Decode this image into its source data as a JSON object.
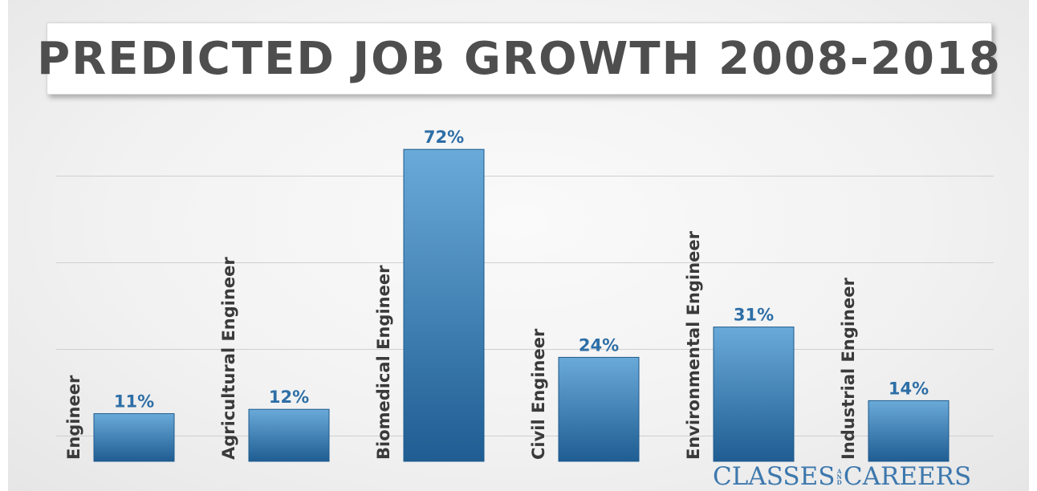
{
  "chart_data": {
    "type": "bar",
    "title": "PREDICTED JOB GROWTH 2008-2018",
    "categories": [
      "Engineer",
      "Agricultural Engineer",
      "Biomedical Engineer",
      "Civil Engineer",
      "Environmental Engineer",
      "Industrial Engineer"
    ],
    "values": [
      11,
      12,
      72,
      24,
      31,
      14
    ],
    "value_labels": [
      "11%",
      "12%",
      "72%",
      "24%",
      "31%",
      "14%"
    ],
    "ylim": [
      0,
      80
    ],
    "grid": true,
    "xlabel": "",
    "ylabel": ""
  },
  "colors": {
    "bar_top": "#6aaad9",
    "bar_bottom": "#1f5d92",
    "value_label": "#2d6ea6",
    "title": "#4e4e4e"
  },
  "logo": {
    "left": "CLASSES",
    "and_top": "A",
    "and_mid": "N",
    "and_bot": "D",
    "right": "CAREERS"
  }
}
